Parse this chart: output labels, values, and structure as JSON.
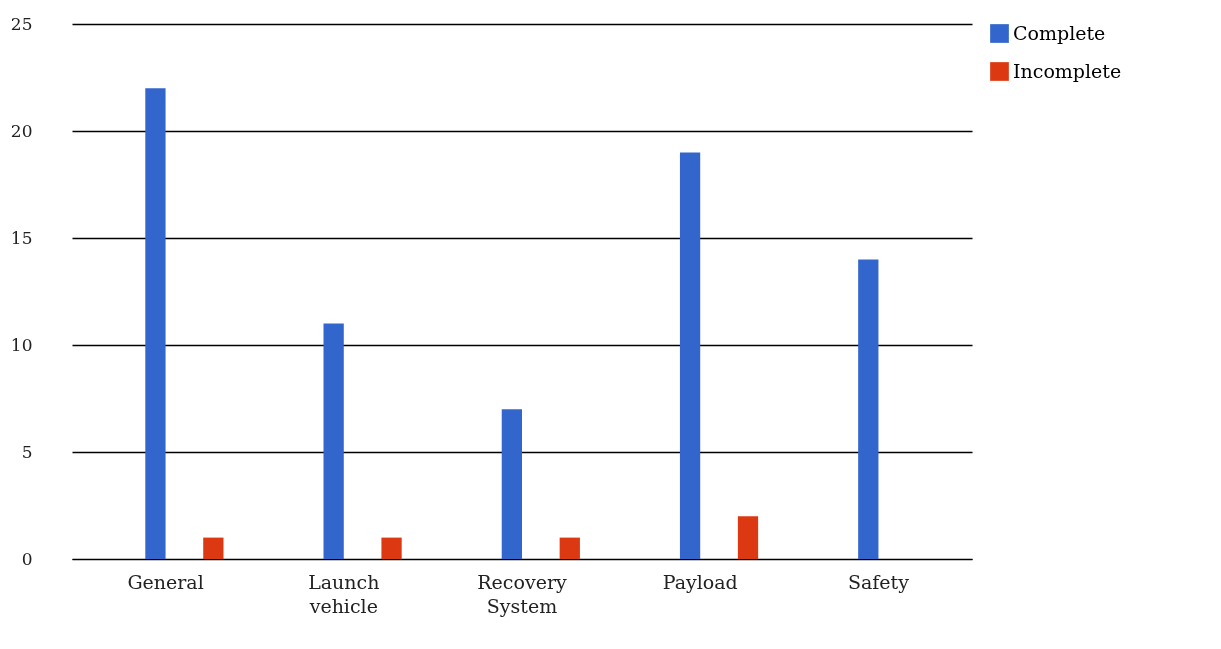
{
  "chart_data": {
    "type": "bar",
    "categories": [
      "General",
      "Launch vehicle",
      "Recovery System",
      "Payload",
      "Safety"
    ],
    "series": [
      {
        "name": "Complete",
        "color": "#3366cc",
        "values": [
          22,
          11,
          7,
          19,
          14
        ]
      },
      {
        "name": "Incomplete",
        "color": "#dc3912",
        "values": [
          1,
          1,
          1,
          2,
          0
        ]
      }
    ],
    "ylim": [
      0,
      25
    ],
    "yticks": [
      0,
      5,
      10,
      15,
      20,
      25
    ],
    "grid": "y",
    "legend": "top right"
  }
}
